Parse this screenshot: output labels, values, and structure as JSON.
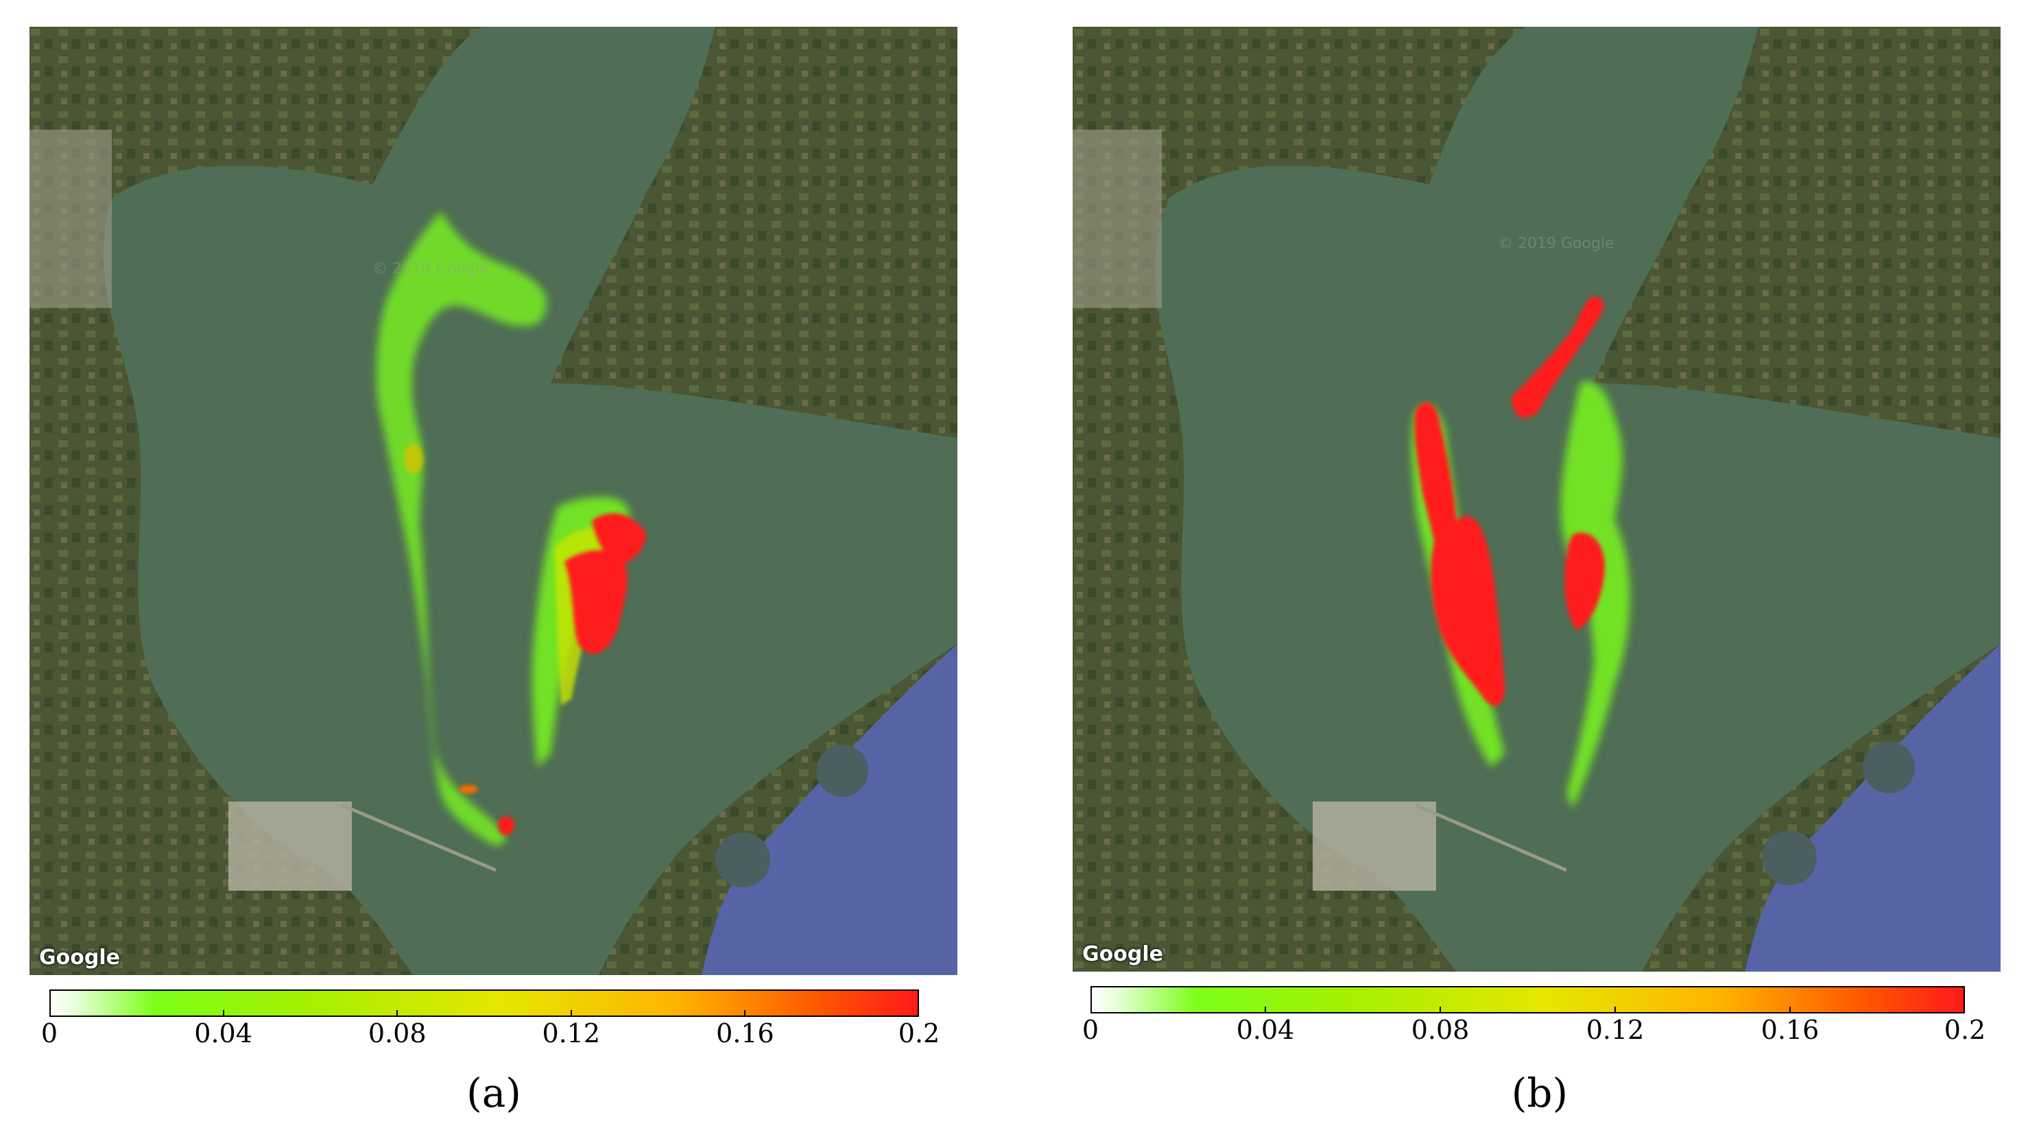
{
  "panels": [
    {
      "id": "a",
      "label": "(a)",
      "attribution": "Google",
      "watermark": "© 2019 Google",
      "colorbar": {
        "min": 0,
        "max": 0.2,
        "ticks": [
          "0",
          "0.04",
          "0.08",
          "0.12",
          "0.16",
          "0.2"
        ]
      }
    },
    {
      "id": "b",
      "label": "(b)",
      "attribution": "Google",
      "watermark": "© 2019 Google",
      "colorbar": {
        "min": 0,
        "max": 0.2,
        "ticks": [
          "0",
          "0.04",
          "0.08",
          "0.12",
          "0.16",
          "0.2"
        ]
      }
    }
  ],
  "colors": {
    "land": "#4f5a36",
    "water": "#4e6e55",
    "gulf": "#5763a8",
    "plume_low": "#7cff1a",
    "plume_mid": "#e6e600",
    "plume_high": "#ff1a1a"
  }
}
